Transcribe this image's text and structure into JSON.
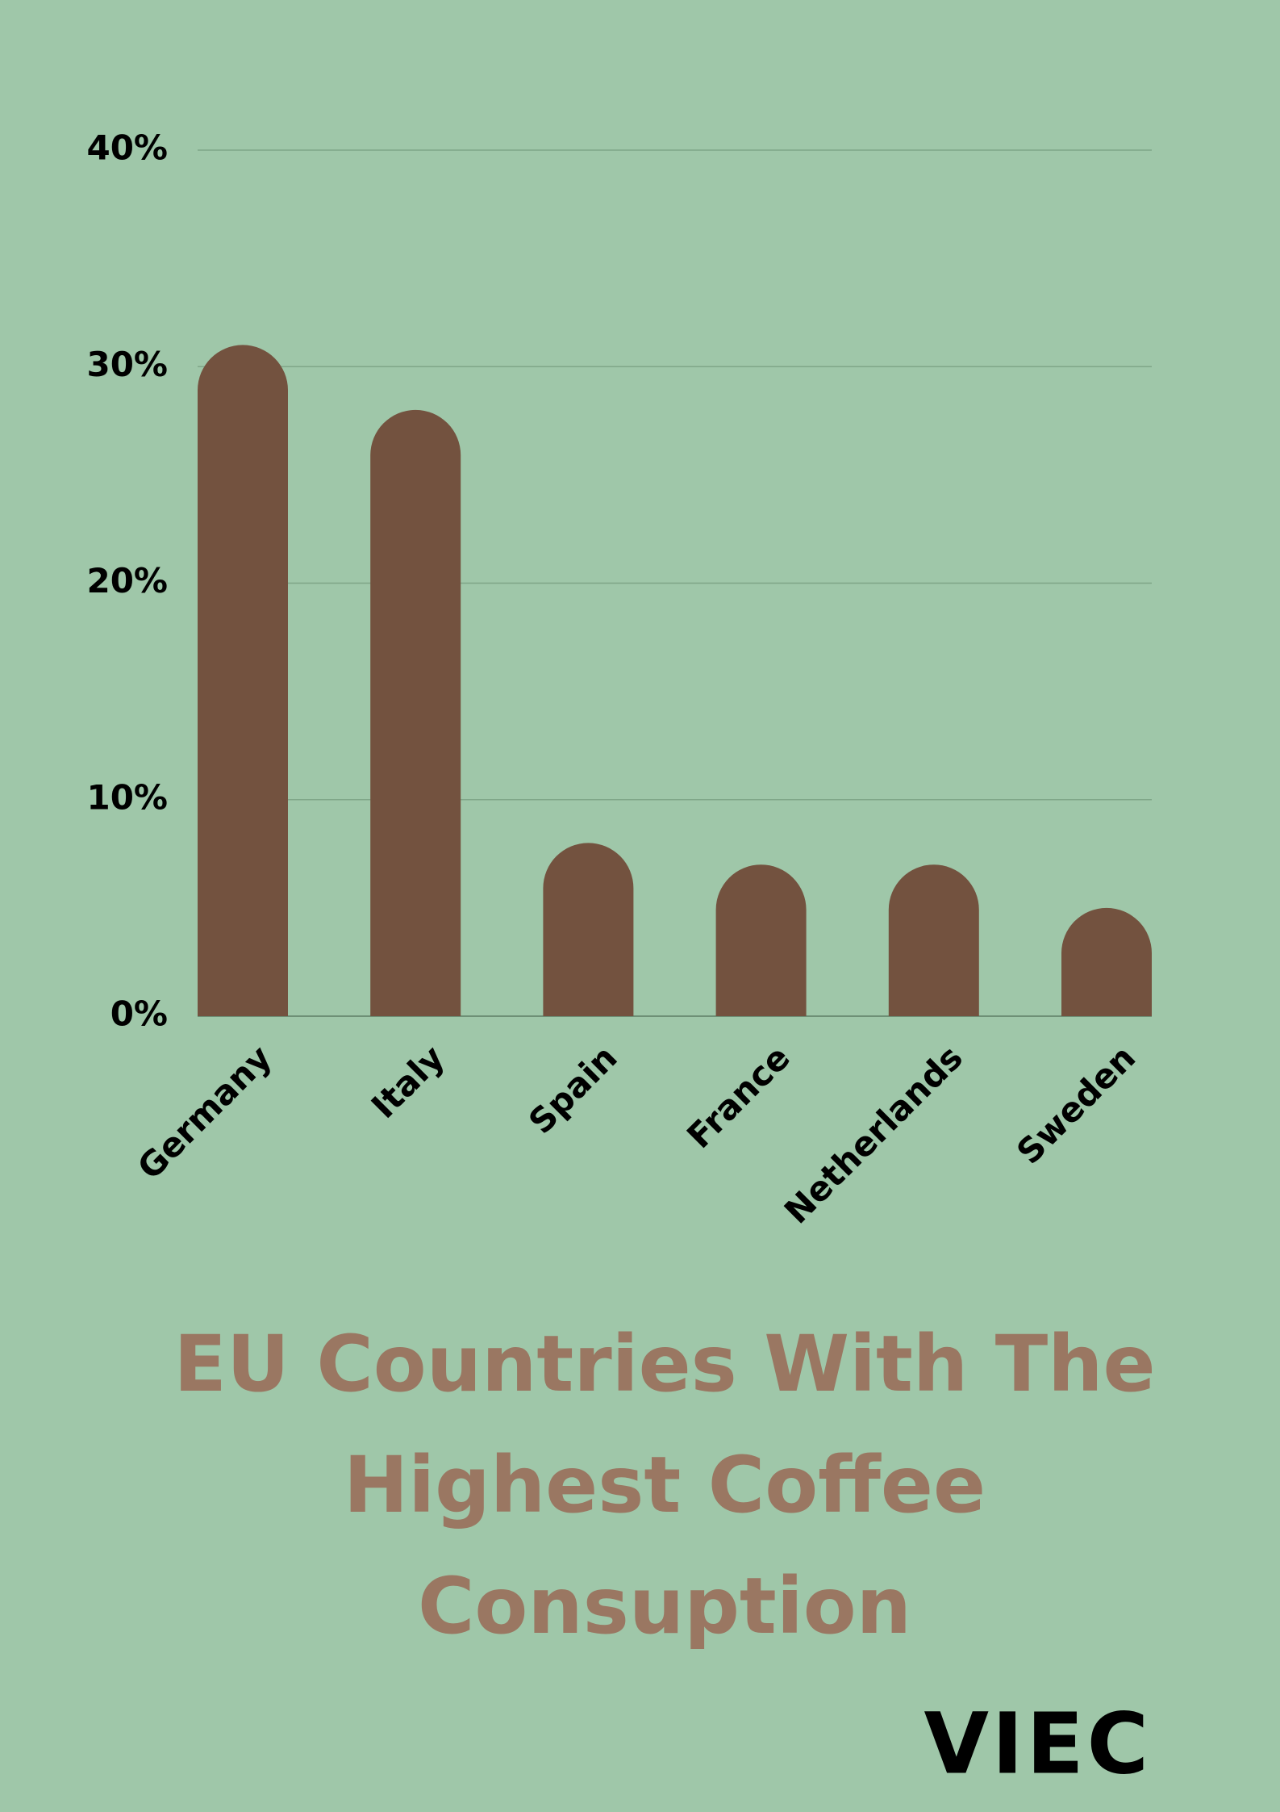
{
  "chart_data": {
    "type": "bar",
    "title": "EU Countries With The Highest Coffee Consuption",
    "categories": [
      "Germany",
      "Italy",
      "Spain",
      "France",
      "Netherlands",
      "Sweden"
    ],
    "values": [
      31,
      28,
      8,
      7,
      7,
      5
    ],
    "color": "#73523f",
    "ylim": [
      0,
      40
    ],
    "yticks": [
      {
        "value": 0,
        "label": "0%"
      },
      {
        "value": 10,
        "label": "10%"
      },
      {
        "value": 20,
        "label": "20%"
      },
      {
        "value": 30,
        "label": "30%"
      },
      {
        "value": 40,
        "label": "40%"
      }
    ],
    "grid": true
  },
  "logo": "VIEC"
}
